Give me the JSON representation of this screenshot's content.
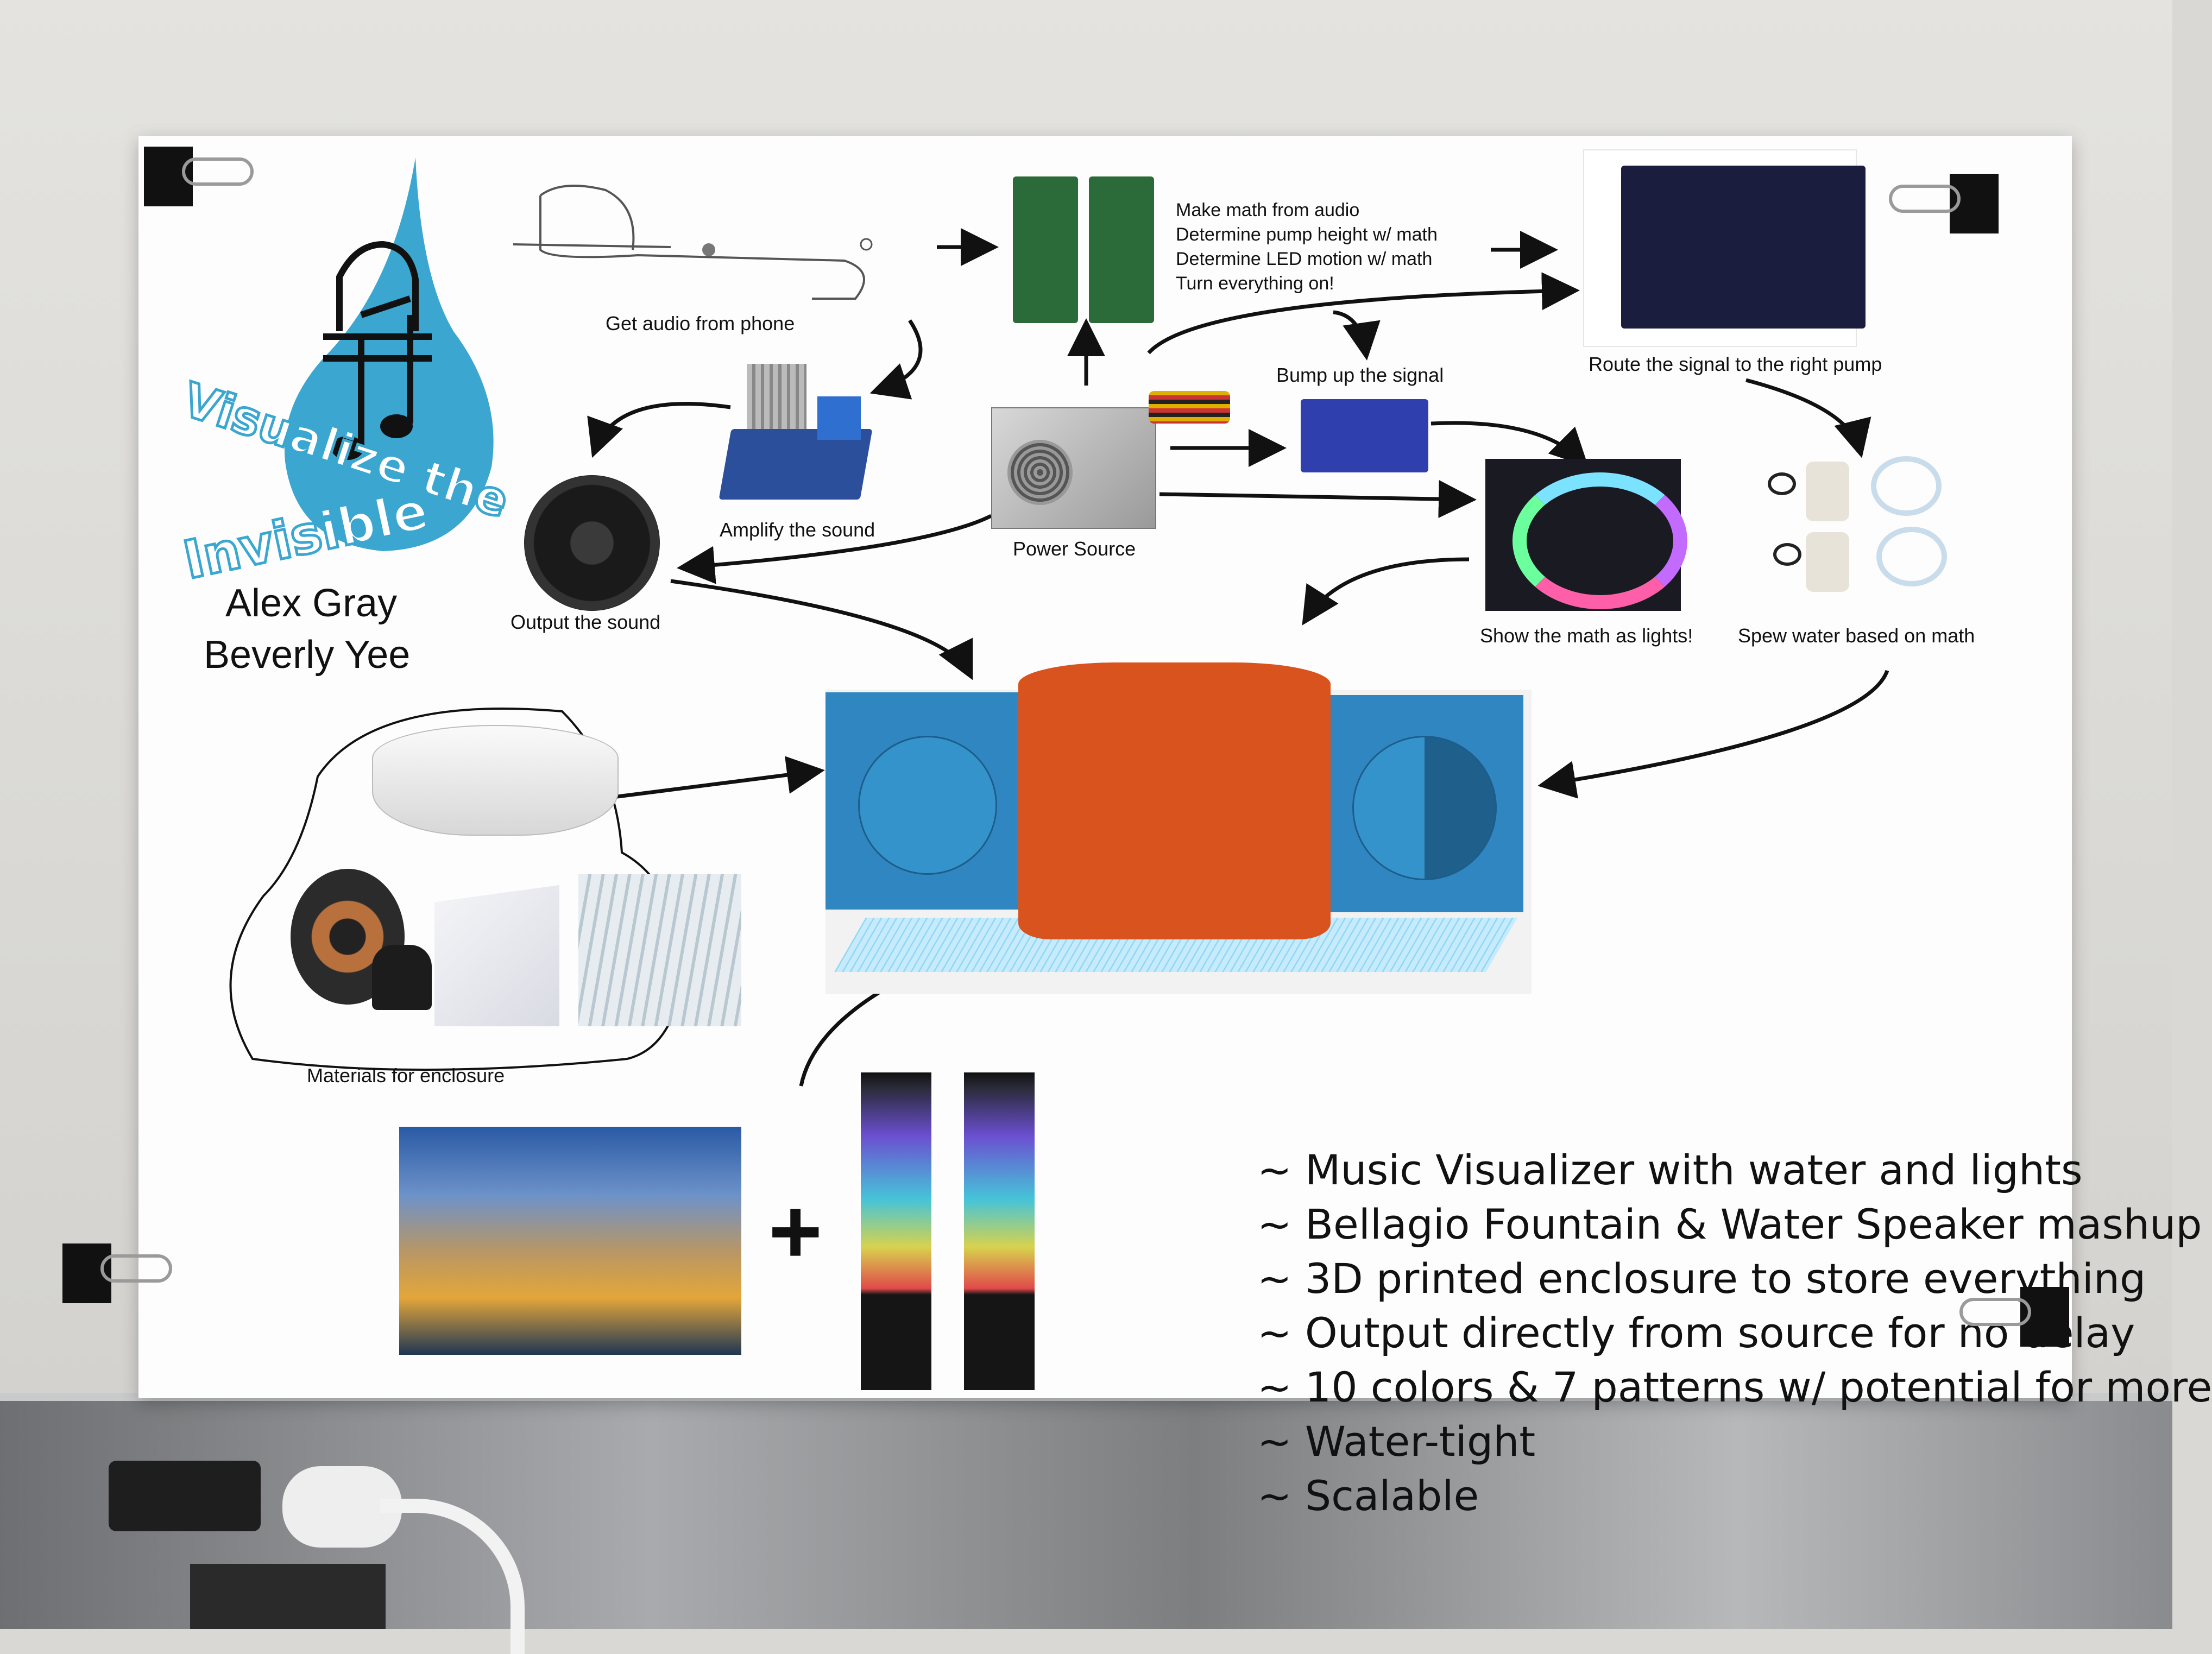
{
  "poster": {
    "logo": {
      "line1": "Visualize the",
      "line2": "Invisible"
    },
    "authors": [
      "Alex Gray",
      "Beverly Yee"
    ],
    "captions": {
      "audio_phone": "Get audio from phone",
      "amplify": "Amplify the sound",
      "output_sound": "Output the sound",
      "power_source": "Power Source",
      "bump_signal": "Bump up the signal",
      "route_signal": "Route the signal to the right pump",
      "show_lights": "Show the math as lights!",
      "spew_water": "Spew water based on math",
      "materials": "Materials for enclosure",
      "math_lines": [
        "Make math from audio",
        "Determine pump height w/ math",
        "Determine LED motion w/ math",
        "Turn everything on!"
      ]
    },
    "plus_symbol": "+",
    "bullets": [
      "~ Music Visualizer with water and lights",
      "~ Bellagio Fountain & Water Speaker mashup",
      "~ 3D printed enclosure to store everything",
      "~ Output directly from source for no delay",
      "~ 10 colors & 7 patterns w/ potential for more",
      "~ Water-tight",
      "~ Scalable"
    ],
    "colors": {
      "logo_blue": "#3ba6cf",
      "enclosure_blue": "#2f86c0",
      "cylinder_orange": "#d9531e",
      "board_green": "#2b6b3a",
      "pcb_navy": "#1b1d3f"
    }
  }
}
